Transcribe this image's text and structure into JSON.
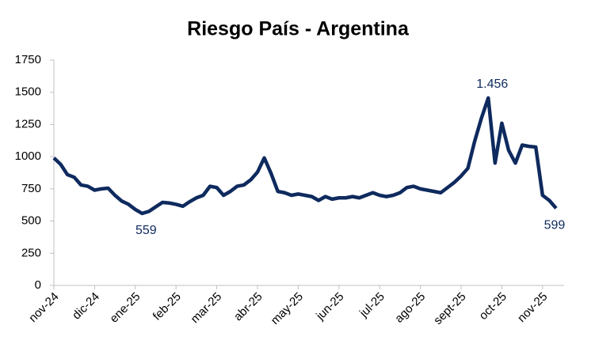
{
  "chart_data": {
    "type": "line",
    "title": "Riesgo País - Argentina",
    "categories": [
      "nov-24",
      null,
      null,
      null,
      null,
      null,
      "dic-24",
      null,
      null,
      null,
      null,
      null,
      "ene-25",
      null,
      null,
      null,
      null,
      null,
      "feb-25",
      null,
      null,
      null,
      null,
      null,
      "mar-25",
      null,
      null,
      null,
      null,
      null,
      "abr-25",
      null,
      null,
      null,
      null,
      null,
      "may-25",
      null,
      null,
      null,
      null,
      null,
      "jun-25",
      null,
      null,
      null,
      null,
      null,
      "jul-25",
      null,
      null,
      null,
      null,
      null,
      "ago-25",
      null,
      null,
      null,
      null,
      null,
      "sept-25",
      null,
      null,
      null,
      null,
      null,
      "oct-25",
      null,
      null,
      null,
      null,
      null,
      "nov-25",
      null,
      null
    ],
    "values": [
      990,
      940,
      860,
      840,
      780,
      770,
      740,
      750,
      755,
      700,
      655,
      630,
      590,
      559,
      575,
      610,
      645,
      640,
      630,
      615,
      650,
      680,
      700,
      770,
      760,
      700,
      730,
      770,
      780,
      820,
      880,
      990,
      870,
      730,
      720,
      700,
      710,
      700,
      690,
      660,
      690,
      670,
      680,
      680,
      690,
      680,
      700,
      720,
      700,
      690,
      700,
      720,
      760,
      770,
      750,
      740,
      730,
      720,
      760,
      800,
      850,
      910,
      1120,
      1300,
      1456,
      950,
      1260,
      1050,
      950,
      1090,
      1080,
      1075,
      700,
      660,
      599
    ],
    "value_labels": [
      null,
      null,
      null,
      null,
      null,
      null,
      null,
      null,
      null,
      null,
      null,
      null,
      null,
      "559",
      null,
      null,
      null,
      null,
      null,
      null,
      null,
      null,
      null,
      null,
      null,
      null,
      null,
      null,
      null,
      null,
      null,
      null,
      null,
      null,
      null,
      null,
      null,
      null,
      null,
      null,
      null,
      null,
      null,
      null,
      null,
      null,
      null,
      null,
      null,
      null,
      null,
      null,
      null,
      null,
      null,
      null,
      null,
      null,
      null,
      null,
      null,
      null,
      null,
      null,
      "1.456",
      null,
      null,
      null,
      null,
      null,
      null,
      null,
      null,
      null,
      "599"
    ],
    "color": "#0e2a5e",
    "ylim": [
      0,
      1750
    ],
    "yticks": [
      0,
      250,
      500,
      750,
      1000,
      1250,
      1500,
      1750
    ],
    "grid": false
  }
}
